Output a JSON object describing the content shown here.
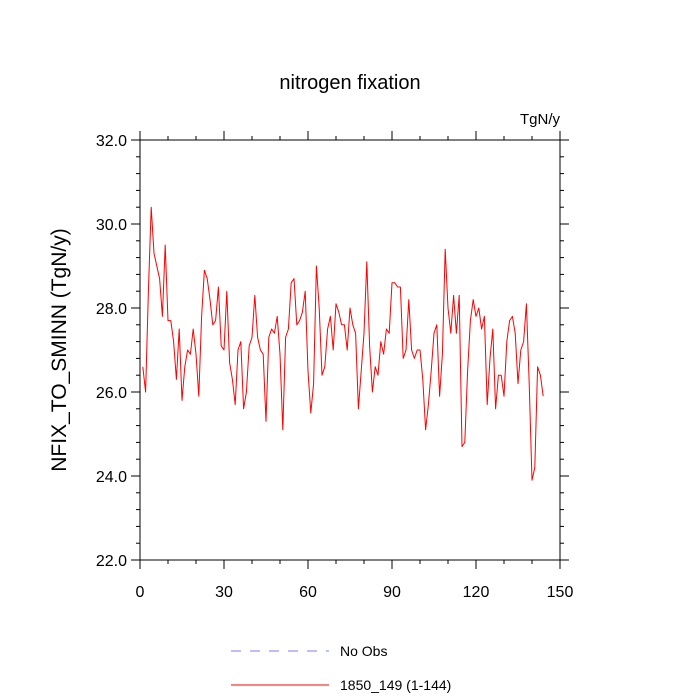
{
  "chart_data": {
    "type": "line",
    "title": "nitrogen fixation",
    "units_label": "TgN/y",
    "ylabel": "NFIX_TO_SMINN  (TgN/y)",
    "xlabel": "",
    "xlim": [
      0,
      150
    ],
    "ylim": [
      22.0,
      32.0
    ],
    "x_ticks": [
      0,
      30,
      60,
      90,
      120,
      150
    ],
    "x_tick_labels": [
      "0",
      "30",
      "60",
      "90",
      "120",
      "150"
    ],
    "y_ticks": [
      22.0,
      24.0,
      26.0,
      28.0,
      30.0,
      32.0
    ],
    "y_tick_labels": [
      "22.0",
      "24.0",
      "26.0",
      "28.0",
      "30.0",
      "32.0"
    ],
    "grid": false,
    "legend_position": "bottom",
    "series": [
      {
        "name": "No Obs",
        "color": "#7b7bff",
        "dash": true,
        "values": []
      },
      {
        "name": "1850_149 (1-144)",
        "color": "#ff0000",
        "dash": false,
        "x_start": 1,
        "values": [
          26.6,
          26.0,
          28.4,
          30.4,
          29.3,
          29.0,
          28.7,
          27.8,
          29.5,
          27.7,
          27.7,
          27.2,
          26.3,
          27.5,
          25.8,
          26.6,
          27.0,
          26.9,
          27.5,
          26.9,
          25.9,
          27.8,
          28.9,
          28.7,
          28.2,
          27.6,
          27.7,
          28.5,
          27.1,
          27.0,
          28.4,
          26.7,
          26.3,
          25.7,
          27.0,
          27.2,
          25.6,
          26.0,
          27.1,
          27.3,
          28.3,
          27.3,
          27.0,
          26.9,
          25.3,
          27.3,
          27.5,
          27.4,
          27.8,
          26.9,
          25.1,
          27.3,
          27.5,
          28.6,
          28.7,
          27.6,
          27.7,
          27.9,
          28.4,
          26.5,
          25.5,
          26.2,
          29.0,
          28.0,
          26.4,
          26.6,
          27.5,
          27.8,
          27.0,
          28.1,
          27.9,
          27.6,
          27.6,
          27.0,
          28.0,
          27.6,
          27.4,
          25.6,
          26.5,
          27.4,
          29.1,
          27.1,
          26.0,
          26.6,
          26.4,
          27.2,
          26.9,
          27.5,
          27.4,
          28.6,
          28.6,
          28.5,
          28.5,
          26.8,
          27.0,
          28.2,
          27.0,
          26.8,
          27.0,
          27.0,
          26.3,
          25.1,
          25.7,
          26.5,
          27.4,
          27.6,
          25.9,
          26.9,
          29.4,
          28.0,
          27.4,
          28.3,
          27.4,
          28.3,
          24.7,
          24.8,
          26.5,
          27.7,
          28.2,
          27.8,
          28.0,
          27.5,
          27.8,
          25.7,
          26.8,
          27.5,
          25.6,
          26.4,
          26.4,
          25.9,
          27.2,
          27.7,
          27.8,
          27.4,
          26.2,
          27.0,
          27.2,
          28.1,
          26.2,
          23.9,
          24.2,
          26.6,
          26.4,
          25.9
        ]
      }
    ]
  }
}
